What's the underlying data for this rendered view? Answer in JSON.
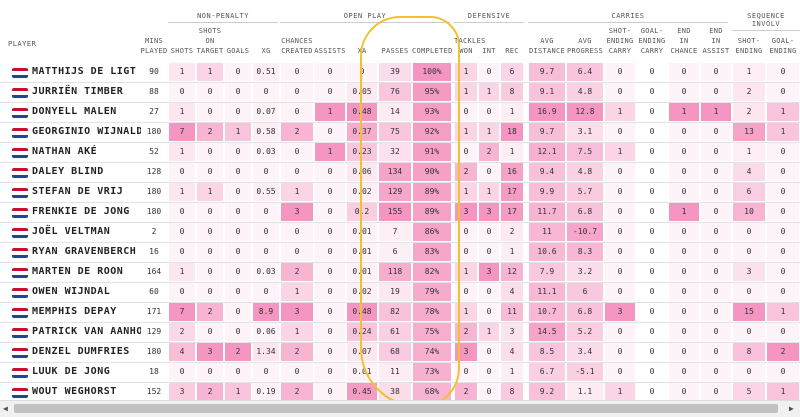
{
  "groups": [
    "NON-PENALTY",
    "OPEN PLAY",
    "DEFENSIVE",
    "CARRIES",
    "SEQUENCE INVOLV"
  ],
  "columns": [
    "PLAYER",
    "MINS PLAYED",
    "SHOTS",
    "SHOTS ON TARGET",
    "GOALS",
    "XG",
    "CHANCES CREATED",
    "ASSISTS",
    "XA",
    "PASSES",
    "COMPLETED",
    "TACKLES WON",
    "INT",
    "REC",
    "AVG DISTANCE",
    "AVG PROGRESS",
    "SHOT-ENDING CARRY",
    "GOAL-ENDING CARRY",
    "END IN CHANCE",
    "END IN ASSIST",
    "SHOT-ENDING",
    "GOAL-ENDING"
  ],
  "accent": "#f06aa6",
  "highlight_color": "#f2c12e",
  "rows": [
    {
      "name": "MATTHIJS DE LIGT",
      "v": [
        "90",
        "1",
        "1",
        "0",
        "0.51",
        "0",
        "0",
        "0",
        "39",
        "100%",
        "1",
        "0",
        "6",
        "9.7",
        "6.4",
        "0",
        "0",
        "0",
        "0",
        "1",
        "0"
      ]
    },
    {
      "name": "JURRIËN TIMBER",
      "v": [
        "88",
        "0",
        "0",
        "0",
        "0",
        "0",
        "0",
        "0.05",
        "76",
        "95%",
        "1",
        "1",
        "8",
        "9.1",
        "4.8",
        "0",
        "0",
        "0",
        "0",
        "2",
        "0"
      ]
    },
    {
      "name": "DONYELL MALEN",
      "v": [
        "27",
        "1",
        "0",
        "0",
        "0.07",
        "0",
        "1",
        "0.48",
        "14",
        "93%",
        "0",
        "0",
        "1",
        "16.9",
        "12.8",
        "1",
        "0",
        "1",
        "1",
        "2",
        "1"
      ]
    },
    {
      "name": "GEORGINIO WIJNALDUM",
      "v": [
        "180",
        "7",
        "2",
        "1",
        "0.58",
        "2",
        "0",
        "0.37",
        "75",
        "92%",
        "1",
        "1",
        "18",
        "9.7",
        "3.1",
        "0",
        "0",
        "0",
        "0",
        "13",
        "1"
      ]
    },
    {
      "name": "NATHAN AKÉ",
      "v": [
        "52",
        "1",
        "0",
        "0",
        "0.03",
        "0",
        "1",
        "0.23",
        "32",
        "91%",
        "0",
        "2",
        "1",
        "12.1",
        "7.5",
        "1",
        "0",
        "0",
        "0",
        "1",
        "0"
      ]
    },
    {
      "name": "DALEY BLIND",
      "v": [
        "128",
        "0",
        "0",
        "0",
        "0",
        "0",
        "0",
        "0.06",
        "134",
        "90%",
        "2",
        "0",
        "16",
        "9.4",
        "4.8",
        "0",
        "0",
        "0",
        "0",
        "4",
        "0"
      ]
    },
    {
      "name": "STEFAN DE VRIJ",
      "v": [
        "180",
        "1",
        "1",
        "0",
        "0.55",
        "1",
        "0",
        "0.02",
        "129",
        "89%",
        "1",
        "1",
        "17",
        "9.9",
        "5.7",
        "0",
        "0",
        "0",
        "0",
        "6",
        "0"
      ]
    },
    {
      "name": "FRENKIE DE JONG",
      "v": [
        "180",
        "0",
        "0",
        "0",
        "0",
        "3",
        "0",
        "0.2",
        "155",
        "89%",
        "3",
        "3",
        "17",
        "11.7",
        "6.8",
        "0",
        "0",
        "1",
        "0",
        "10",
        "0"
      ]
    },
    {
      "name": "JOËL VELTMAN",
      "v": [
        "2",
        "0",
        "0",
        "0",
        "0",
        "0",
        "0",
        "0.01",
        "7",
        "86%",
        "0",
        "0",
        "2",
        "11",
        "-10.7",
        "0",
        "0",
        "0",
        "0",
        "0",
        "0"
      ]
    },
    {
      "name": "RYAN GRAVENBERCH",
      "v": [
        "16",
        "0",
        "0",
        "0",
        "0",
        "0",
        "0",
        "0.01",
        "6",
        "83%",
        "0",
        "0",
        "1",
        "10.6",
        "8.3",
        "0",
        "0",
        "0",
        "0",
        "0",
        "0"
      ]
    },
    {
      "name": "MARTEN DE ROON",
      "v": [
        "164",
        "1",
        "0",
        "0",
        "0.03",
        "2",
        "0",
        "0.01",
        "118",
        "82%",
        "1",
        "3",
        "12",
        "7.9",
        "3.2",
        "0",
        "0",
        "0",
        "0",
        "3",
        "0"
      ]
    },
    {
      "name": "OWEN WIJNDAL",
      "v": [
        "60",
        "0",
        "0",
        "0",
        "0",
        "1",
        "0",
        "0.02",
        "19",
        "79%",
        "0",
        "0",
        "4",
        "11.1",
        "6",
        "0",
        "0",
        "0",
        "0",
        "0",
        "0"
      ]
    },
    {
      "name": "MEMPHIS DEPAY",
      "v": [
        "171",
        "7",
        "2",
        "0",
        "8.9",
        "3",
        "0",
        "0.48",
        "82",
        "78%",
        "1",
        "0",
        "11",
        "10.7",
        "6.8",
        "3",
        "0",
        "0",
        "0",
        "15",
        "1"
      ]
    },
    {
      "name": "PATRICK VAN AANHOLT",
      "v": [
        "129",
        "2",
        "0",
        "0",
        "0.06",
        "1",
        "0",
        "0.24",
        "61",
        "75%",
        "2",
        "1",
        "3",
        "14.5",
        "5.2",
        "0",
        "0",
        "0",
        "0",
        "0",
        "0"
      ]
    },
    {
      "name": "DENZEL DUMFRIES",
      "v": [
        "180",
        "4",
        "3",
        "2",
        "1.34",
        "2",
        "0",
        "0.07",
        "68",
        "74%",
        "3",
        "0",
        "4",
        "8.5",
        "3.4",
        "0",
        "0",
        "0",
        "0",
        "8",
        "2"
      ]
    },
    {
      "name": "LUUK DE JONG",
      "v": [
        "18",
        "0",
        "0",
        "0",
        "0",
        "0",
        "0",
        "0.01",
        "11",
        "73%",
        "0",
        "0",
        "1",
        "6.7",
        "-5.1",
        "0",
        "0",
        "0",
        "0",
        "0",
        "0"
      ]
    },
    {
      "name": "WOUT WEGHORST",
      "v": [
        "152",
        "3",
        "2",
        "1",
        "0.19",
        "2",
        "0",
        "0.45",
        "38",
        "68%",
        "2",
        "0",
        "8",
        "9.2",
        "1.1",
        "1",
        "0",
        "0",
        "0",
        "5",
        "1"
      ]
    }
  ]
}
